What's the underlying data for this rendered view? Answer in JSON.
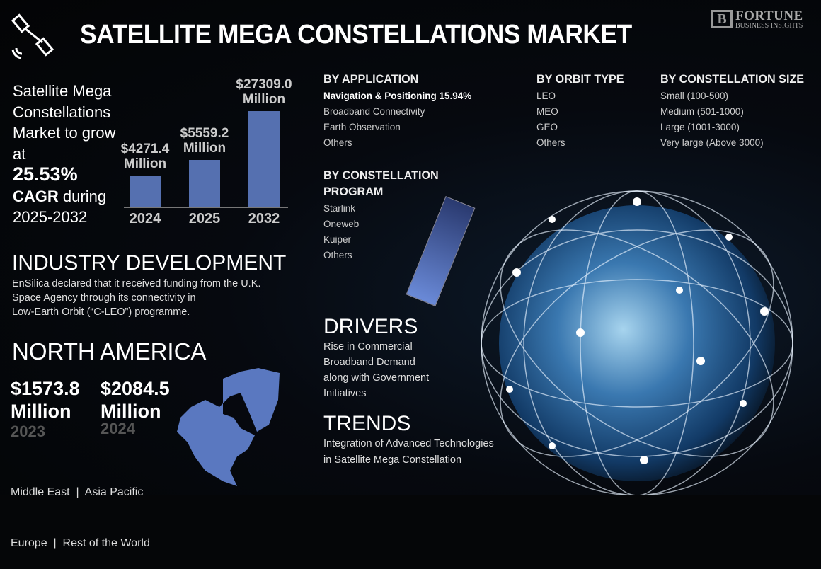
{
  "header": {
    "title": "SATELLITE MEGA CONSTELLATIONS MARKET",
    "logo_main": "FORTUNE",
    "logo_sub": "BUSINESS INSIGHTS",
    "icon": "satellite-icon"
  },
  "intro": {
    "line1": "Satellite Mega Constellations Market to grow at",
    "cagr": "25.53%",
    "cagr_label": "CAGR",
    "tail": "during 2025-2032"
  },
  "chart_data": {
    "type": "bar",
    "categories": [
      "2024",
      "2025",
      "2032"
    ],
    "values": [
      4271.4,
      5559.2,
      27309.0
    ],
    "labels": [
      "$4271.4 Million",
      "$5559.2 Million",
      "$27309.0 Million"
    ],
    "color": "#5570b0",
    "grid": false
  },
  "segments": {
    "application": {
      "title": "BY APPLICATION",
      "items": [
        "Navigation & Positioning  15.94%",
        "Broadband Connectivity",
        "Earth Observation",
        "Others"
      ]
    },
    "orbit": {
      "title": "BY ORBIT TYPE",
      "items": [
        "LEO",
        "MEO",
        "GEO",
        "Others"
      ]
    },
    "size": {
      "title": "BY CONSTELLATION SIZE",
      "items": [
        "Small (100-500)",
        "Medium (501-1000)",
        "Large (1001-3000)",
        "Very large (Above 3000)"
      ]
    },
    "program": {
      "title1": "BY CONSTELLATION",
      "title2": "PROGRAM",
      "items": [
        "Starlink",
        "Oneweb",
        "Kuiper",
        "Others"
      ]
    }
  },
  "industry": {
    "title": "INDUSTRY DEVELOPMENT",
    "lines": [
      "EnSilica declared that it received funding from the U.K.",
      "Space Agency through its connectivity in",
      "Low-Earth Orbit (“C-LEO”) programme."
    ]
  },
  "region": {
    "title": "NORTH AMERICA",
    "values": [
      {
        "amount": "$1573.8",
        "unit": "Million",
        "year": "2023"
      },
      {
        "amount": "$2084.5",
        "unit": "Million",
        "year": "2024"
      }
    ],
    "others1": "Middle East  |  Asia Pacific",
    "others2": "Europe  |  Rest of the World",
    "map_color": "#5a78c0"
  },
  "drivers": {
    "title": "DRIVERS",
    "lines": [
      "Rise in Commercial",
      "Broadband Demand",
      "along with Government",
      "Initiatives"
    ]
  },
  "trends": {
    "title": "TRENDS",
    "lines": [
      "Integration of Advanced Technologies",
      "in Satellite Mega Constellation"
    ]
  }
}
